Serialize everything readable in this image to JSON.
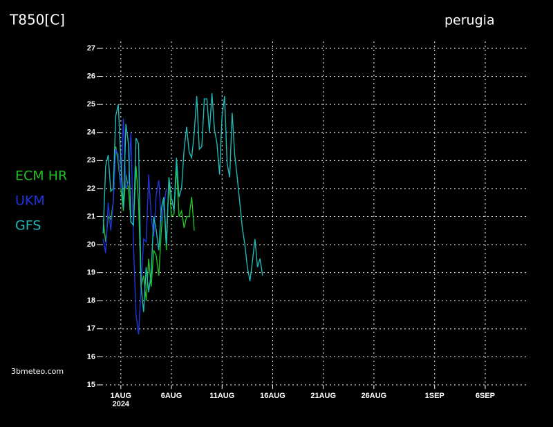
{
  "chart_data": {
    "type": "line",
    "title": "T850[C]",
    "location": "perugia",
    "credit": "3bmeteo.com",
    "year_label": "2024",
    "x": [
      -0.75,
      -0.5,
      -0.25,
      0,
      0.25,
      0.5,
      0.75,
      1,
      1.25,
      1.5,
      1.75,
      2,
      2.25,
      2.5,
      2.75,
      3,
      3.25,
      3.5,
      3.75,
      4,
      4.25,
      4.5,
      4.75,
      5,
      5.25,
      5.5,
      5.75,
      6,
      6.25,
      6.5,
      6.75,
      7,
      7.25,
      7.5,
      7.75,
      8,
      8.25,
      8.5,
      8.75,
      9,
      9.25,
      9.5,
      9.75,
      10,
      10.25,
      10.5,
      10.75,
      11,
      11.25,
      11.5,
      11.75,
      12,
      12.25,
      12.5,
      12.75,
      13,
      13.25,
      13.5,
      13.75,
      14,
      14.25,
      14.5,
      14.75,
      15
    ],
    "series": [
      {
        "name": "ECM HR",
        "color": "#22c022",
        "values": [
          20.9,
          20.1,
          21.0,
          20.9,
          21.5,
          23.5,
          22.9,
          22.0,
          21.2,
          22.5,
          22.0,
          20.8,
          20.7,
          22.8,
          21.5,
          18.5,
          18.9,
          18.0,
          19.5,
          18.5,
          19.8,
          19.6,
          18.9,
          20.5,
          21.6,
          19.8,
          22.4,
          21.0,
          21.1,
          22.8,
          21.0,
          21.2,
          20.6,
          21.0,
          21.0,
          21.7,
          20.5,
          null,
          null,
          null,
          null,
          null,
          null,
          null,
          null,
          null,
          null,
          null,
          null,
          null,
          null,
          null,
          null,
          null,
          null,
          null,
          null,
          null,
          null,
          null,
          null,
          null,
          null,
          null
        ]
      },
      {
        "name": "UKM",
        "color": "#2233dd",
        "values": [
          20.2,
          19.7,
          21.5,
          20.5,
          21.5,
          23.4,
          23.2,
          22.0,
          24.5,
          22.0,
          22.2,
          24.0,
          20.0,
          17.5,
          16.8,
          18.5,
          20.2,
          20.1,
          22.5,
          21.0,
          20.3,
          21.8,
          22.3,
          20.8,
          21.4,
          22.0,
          null,
          null,
          null,
          null,
          null,
          null,
          null,
          null,
          null,
          null,
          null,
          null,
          null,
          null,
          null,
          null,
          null,
          null,
          null,
          null,
          null,
          null,
          null,
          null,
          null,
          null,
          null,
          null,
          null,
          null,
          null,
          null,
          null,
          null,
          null,
          null,
          null,
          null
        ]
      },
      {
        "name": "GFS",
        "color": "#20b8b8",
        "values": [
          20.4,
          22.8,
          23.2,
          21.9,
          22.0,
          24.6,
          25.0,
          23.0,
          21.3,
          24.3,
          23.6,
          20.8,
          20.7,
          23.8,
          23.6,
          18.5,
          17.6,
          19.2,
          18.3,
          19.0,
          21.0,
          20.5,
          19.8,
          21.3,
          21.7,
          20.0,
          22.4,
          21.7,
          21.2,
          23.1,
          21.7,
          22.0,
          23.4,
          24.2,
          23.3,
          23.1,
          24.0,
          25.3,
          23.4,
          23.5,
          25.2,
          25.2,
          24.0,
          25.4,
          24.1,
          23.6,
          22.5,
          24.6,
          25.3,
          22.9,
          22.4,
          24.7,
          23.2,
          22.4,
          21.5,
          20.6,
          20.0,
          19.2,
          18.7,
          19.4,
          20.2,
          19.2,
          19.5,
          18.9
        ]
      }
    ],
    "xlim": [
      -0.9,
      41.1
    ],
    "xticks": [
      {
        "value": 1,
        "label": "1AUG"
      },
      {
        "value": 6,
        "label": "6AUG"
      },
      {
        "value": 11,
        "label": "11AUG"
      },
      {
        "value": 16,
        "label": "16AUG"
      },
      {
        "value": 21,
        "label": "21AUG"
      },
      {
        "value": 26,
        "label": "26AUG"
      },
      {
        "value": 32,
        "label": "1SEP"
      },
      {
        "value": 37,
        "label": "6SEP"
      }
    ],
    "ylim": [
      15,
      27
    ],
    "yticks": [
      15,
      16,
      17,
      18,
      19,
      20,
      21,
      22,
      23,
      24,
      25,
      26,
      27
    ],
    "grid": true
  }
}
